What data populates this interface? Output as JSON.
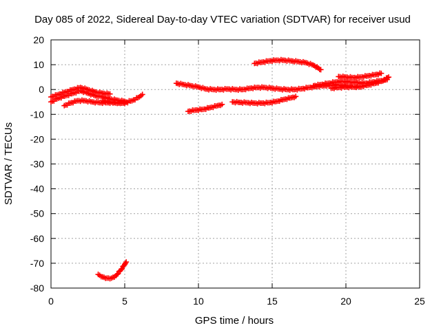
{
  "chart_data": {
    "type": "scatter",
    "title": "Day 085 of 2022, Sidereal Day-to-day VTEC variation (SDTVAR) for receiver usud",
    "xlabel": "GPS time / hours",
    "ylabel": "SDTVAR / TECUs",
    "xlim": [
      0,
      25
    ],
    "ylim": [
      -80,
      20
    ],
    "xticks": [
      0,
      5,
      10,
      15,
      20,
      25
    ],
    "yticks": [
      20,
      10,
      0,
      -10,
      -20,
      -30,
      -40,
      -50,
      -60,
      -70,
      -80
    ],
    "grid": true,
    "legend": "none",
    "marker": "plus",
    "series_color": "#ff0000",
    "series": [
      {
        "values": [
          [
            0.0,
            -5.0
          ],
          [
            0.5,
            -3.5
          ],
          [
            1.0,
            -2.5
          ],
          [
            1.5,
            -1.5
          ],
          [
            2.0,
            -0.5
          ],
          [
            2.5,
            -1.5
          ],
          [
            3.0,
            -2.5
          ],
          [
            3.5,
            -3.0
          ],
          [
            4.0,
            -3.8
          ],
          [
            4.5,
            -4.3
          ],
          [
            5.0,
            -4.8
          ]
        ]
      },
      {
        "values": [
          [
            0.0,
            -3.0
          ],
          [
            0.5,
            -2.0
          ],
          [
            1.0,
            -1.0
          ],
          [
            1.5,
            0.0
          ],
          [
            2.0,
            0.8
          ],
          [
            2.5,
            0.0
          ],
          [
            3.0,
            -1.0
          ],
          [
            3.5,
            -1.5
          ],
          [
            4.0,
            -1.8
          ]
        ]
      },
      {
        "values": [
          [
            0.9,
            -6.5
          ],
          [
            1.3,
            -5.5
          ],
          [
            1.8,
            -4.5
          ],
          [
            2.3,
            -4.5
          ],
          [
            2.8,
            -5.0
          ],
          [
            3.3,
            -5.3
          ],
          [
            3.8,
            -5.3
          ],
          [
            4.3,
            -5.3
          ],
          [
            4.8,
            -5.5
          ],
          [
            5.2,
            -5.3
          ]
        ]
      },
      {
        "values": [
          [
            3.5,
            -4.5
          ],
          [
            4.0,
            -5.0
          ],
          [
            4.5,
            -5.5
          ],
          [
            5.0,
            -5.2
          ],
          [
            5.5,
            -4.5
          ],
          [
            6.0,
            -3.0
          ],
          [
            6.2,
            -2.0
          ]
        ]
      },
      {
        "values": [
          [
            3.2,
            -74.5
          ],
          [
            3.5,
            -75.5
          ],
          [
            3.8,
            -76.0
          ],
          [
            4.1,
            -76.0
          ],
          [
            4.4,
            -75.0
          ],
          [
            4.7,
            -73.0
          ],
          [
            5.0,
            -70.5
          ],
          [
            5.1,
            -69.5
          ]
        ]
      },
      {
        "values": [
          [
            8.5,
            2.5
          ],
          [
            9.0,
            2.0
          ],
          [
            9.5,
            1.5
          ],
          [
            10.0,
            1.0
          ],
          [
            10.5,
            0.2
          ],
          [
            11.0,
            0.0
          ],
          [
            11.5,
            0.0
          ],
          [
            12.0,
            0.2
          ],
          [
            12.5,
            0.0
          ],
          [
            13.0,
            0.0
          ],
          [
            13.5,
            0.5
          ],
          [
            14.0,
            0.8
          ],
          [
            14.5,
            0.8
          ],
          [
            15.0,
            0.5
          ],
          [
            15.5,
            0.2
          ],
          [
            16.0,
            0.0
          ],
          [
            16.5,
            0.0
          ],
          [
            17.0,
            0.3
          ],
          [
            17.5,
            0.8
          ],
          [
            18.0,
            1.2
          ],
          [
            18.5,
            1.5
          ],
          [
            19.0,
            1.8
          ],
          [
            19.5,
            1.8
          ],
          [
            20.0,
            1.5
          ],
          [
            20.5,
            1.2
          ],
          [
            21.0,
            1.0
          ]
        ]
      },
      {
        "values": [
          [
            9.3,
            -8.8
          ],
          [
            9.8,
            -8.3
          ],
          [
            10.3,
            -8.0
          ],
          [
            10.8,
            -7.3
          ],
          [
            11.3,
            -6.5
          ],
          [
            11.6,
            -6.0
          ]
        ]
      },
      {
        "values": [
          [
            12.3,
            -5.0
          ],
          [
            12.8,
            -5.2
          ],
          [
            13.3,
            -5.3
          ],
          [
            13.8,
            -5.5
          ],
          [
            14.3,
            -5.5
          ],
          [
            14.8,
            -5.3
          ],
          [
            15.3,
            -4.8
          ],
          [
            15.8,
            -4.0
          ],
          [
            16.3,
            -3.3
          ],
          [
            16.6,
            -2.8
          ]
        ]
      },
      {
        "values": [
          [
            13.8,
            10.5
          ],
          [
            14.3,
            11.0
          ],
          [
            14.8,
            11.5
          ],
          [
            15.3,
            11.8
          ],
          [
            15.8,
            11.8
          ],
          [
            16.3,
            11.5
          ],
          [
            16.8,
            11.2
          ],
          [
            17.3,
            10.8
          ],
          [
            17.8,
            9.8
          ],
          [
            18.3,
            8.0
          ]
        ]
      },
      {
        "values": [
          [
            17.8,
            1.5
          ],
          [
            18.3,
            2.0
          ],
          [
            18.8,
            2.5
          ],
          [
            19.3,
            3.0
          ],
          [
            19.8,
            3.3
          ],
          [
            20.3,
            3.0
          ],
          [
            20.8,
            2.8
          ],
          [
            21.3,
            2.5
          ],
          [
            21.8,
            3.0
          ],
          [
            22.3,
            3.5
          ],
          [
            22.8,
            4.0
          ]
        ]
      },
      {
        "values": [
          [
            19.5,
            5.2
          ],
          [
            20.0,
            5.0
          ],
          [
            20.5,
            4.8
          ],
          [
            21.0,
            5.0
          ],
          [
            21.5,
            5.5
          ],
          [
            22.0,
            6.0
          ],
          [
            22.4,
            6.5
          ]
        ]
      },
      {
        "values": [
          [
            19.0,
            0.5
          ],
          [
            19.5,
            0.8
          ],
          [
            20.0,
            1.0
          ],
          [
            20.5,
            1.0
          ],
          [
            21.0,
            1.2
          ],
          [
            21.5,
            1.8
          ],
          [
            22.0,
            2.5
          ],
          [
            22.5,
            3.5
          ],
          [
            22.9,
            5.0
          ]
        ]
      }
    ]
  }
}
